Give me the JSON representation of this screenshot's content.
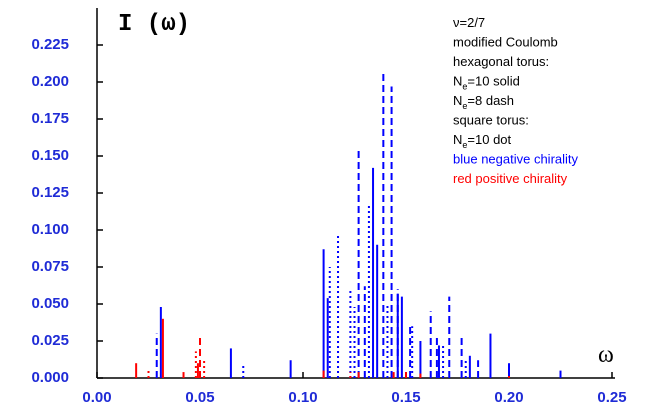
{
  "chart_data": {
    "type": "stem",
    "ylabel": "I (ω)",
    "xlabel": "ω",
    "xlim": [
      0,
      0.25
    ],
    "ylim": [
      0,
      0.25
    ],
    "xticks": [
      {
        "value": 0,
        "label": "0.00"
      },
      {
        "value": 0.05,
        "label": "0.05"
      },
      {
        "value": 0.1,
        "label": "0.10"
      },
      {
        "value": 0.15,
        "label": "0.15"
      },
      {
        "value": 0.2,
        "label": "0.20"
      },
      {
        "value": 0.25,
        "label": "0.25"
      }
    ],
    "yticks": [
      {
        "value": 0,
        "label": "0.000"
      },
      {
        "value": 0.025,
        "label": "0.025"
      },
      {
        "value": 0.05,
        "label": "0.050"
      },
      {
        "value": 0.075,
        "label": "0.075"
      },
      {
        "value": 0.1,
        "label": "0.100"
      },
      {
        "value": 0.125,
        "label": "0.125"
      },
      {
        "value": 0.15,
        "label": "0.150"
      },
      {
        "value": 0.175,
        "label": "0.175"
      },
      {
        "value": 0.2,
        "label": "0.200"
      },
      {
        "value": 0.225,
        "label": "0.225"
      }
    ],
    "tick_label_color": "#1f2bd6",
    "annotations": [
      [
        "ν=2/7"
      ],
      [
        "modified Coulomb"
      ],
      [
        "hexagonal torus:"
      ],
      [
        "N",
        "e",
        "=10 solid"
      ],
      [
        "N",
        "e",
        "=8  dash"
      ],
      [
        "square torus:"
      ],
      [
        "N",
        "e",
        "=10 dot"
      ],
      [
        "blue negative chirality"
      ],
      [
        "red positive chirality"
      ]
    ],
    "annotation_colors": [
      "#000000",
      "#000000",
      "#000000",
      "#000000",
      "#000000",
      "#000000",
      "#000000",
      "#0000ff",
      "#ff0000"
    ],
    "series": [
      {
        "color": "#0000ff",
        "style": "solid",
        "x": [
          0.031,
          0.065,
          0.094,
          0.11,
          0.112,
          0.134,
          0.136,
          0.146,
          0.148,
          0.157,
          0.166,
          0.181,
          0.191,
          0.2,
          0.225
        ],
        "values": [
          0.048,
          0.02,
          0.012,
          0.087,
          0.054,
          0.142,
          0.09,
          0.057,
          0.055,
          0.025,
          0.022,
          0.015,
          0.03,
          0.01,
          0.005
        ]
      },
      {
        "color": "#0000ff",
        "style": "dash",
        "x": [
          0.029,
          0.127,
          0.13,
          0.139,
          0.143,
          0.146,
          0.152,
          0.162,
          0.165,
          0.171,
          0.177,
          0.185
        ],
        "values": [
          0.03,
          0.155,
          0.062,
          0.207,
          0.197,
          0.06,
          0.035,
          0.045,
          0.028,
          0.055,
          0.028,
          0.012
        ]
      },
      {
        "color": "#0000ff",
        "style": "dot",
        "x": [
          0.071,
          0.113,
          0.117,
          0.123,
          0.125,
          0.132,
          0.141,
          0.153,
          0.168,
          0.179,
          0.2
        ],
        "values": [
          0.01,
          0.075,
          0.097,
          0.06,
          0.048,
          0.118,
          0.05,
          0.035,
          0.022,
          0.012,
          0.01
        ]
      },
      {
        "color": "#ff0000",
        "style": "solid",
        "x": [
          0.019,
          0.032,
          0.049,
          0.11,
          0.144,
          0.157
        ],
        "values": [
          0.01,
          0.04,
          0.01,
          0.005,
          0.004,
          0.003
        ]
      },
      {
        "color": "#ff0000",
        "style": "dash",
        "x": [
          0.042,
          0.05,
          0.127,
          0.15
        ],
        "values": [
          0.004,
          0.027,
          0.004,
          0.004
        ]
      },
      {
        "color": "#ff0000",
        "style": "dot",
        "x": [
          0.025,
          0.048,
          0.052,
          0.123,
          0.2
        ],
        "values": [
          0.005,
          0.018,
          0.012,
          0.004,
          0.002
        ]
      }
    ]
  }
}
